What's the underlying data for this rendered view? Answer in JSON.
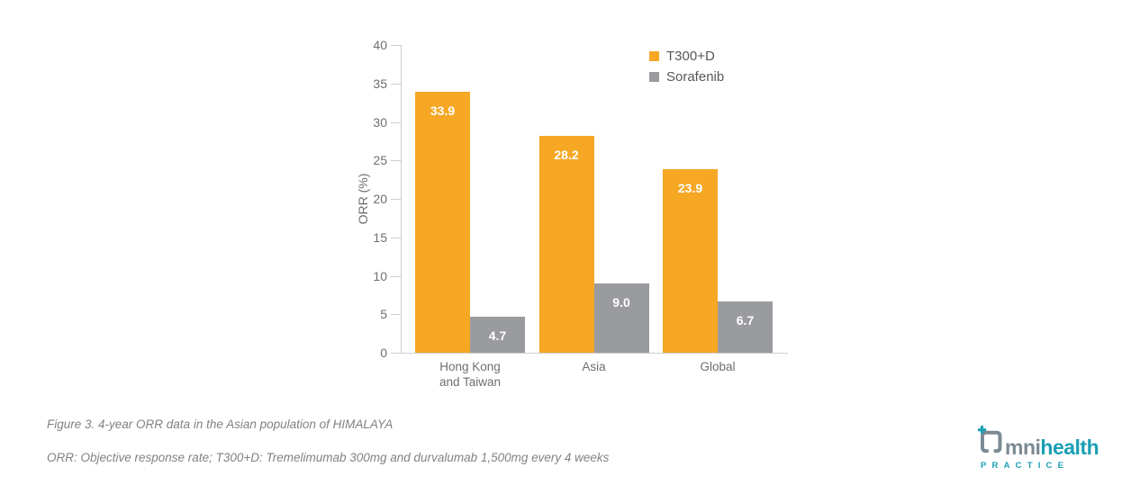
{
  "chart_data": {
    "type": "bar",
    "title": "",
    "ylabel": "ORR (%)",
    "ylim": [
      0,
      40
    ],
    "yticks": [
      0,
      5,
      10,
      15,
      20,
      25,
      30,
      35,
      40
    ],
    "grid": false,
    "legend_position": "top-right",
    "categories": [
      "Hong Kong and Taiwan",
      "Asia",
      "Global"
    ],
    "categories_display": [
      [
        "Hong Kong",
        "and Taiwan"
      ],
      [
        "Asia"
      ],
      [
        "Global"
      ]
    ],
    "series": [
      {
        "name": "T300+D",
        "color": "#F6A724",
        "values": [
          33.9,
          28.2,
          23.9
        ]
      },
      {
        "name": "Sorafenib",
        "color": "#9A9B9E",
        "values": [
          4.7,
          9.0,
          6.7
        ]
      }
    ],
    "value_label_color": "#FFFFFF"
  },
  "captions": {
    "figure_caption": "Figure 3. 4-year ORR data in the Asian population of HIMALAYA",
    "footnote": "ORR: Objective response rate; T300+D: Tremelimumab 300mg and durvalumab 1,500mg every 4 weeks"
  },
  "logo": {
    "name": "Omnihealth Practice",
    "text_prefix": "mni",
    "text_suffix": "health",
    "subtext": "PRACTICE",
    "slate_color": "#7B8A93",
    "teal_color": "#1B9FB4"
  },
  "colors": {
    "axis_line": "#CFCFCF",
    "axis_text": "#6F6F6F",
    "legend_text": "#575757",
    "caption_text": "#828282",
    "background": "#FFFFFF"
  }
}
